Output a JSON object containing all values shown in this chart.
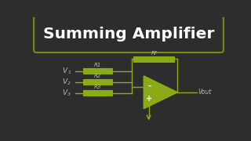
{
  "bg_color": "#2d2d2d",
  "title_text": "Summing Amplifier",
  "title_box_edge": "#7a8a1a",
  "op_amp_color": "#8aaa18",
  "wire_color": "#8aaa18",
  "resistor_color": "#8aaa18",
  "text_color": "#ffffff",
  "label_color": "#bbbbbb",
  "resistors": [
    "R1",
    "R2",
    "R3"
  ],
  "voltages": [
    "V1",
    "V2",
    "V3"
  ],
  "feedback_label": "Rf",
  "output_label": "Vout",
  "minus_sign": "-",
  "plus_sign": "+"
}
